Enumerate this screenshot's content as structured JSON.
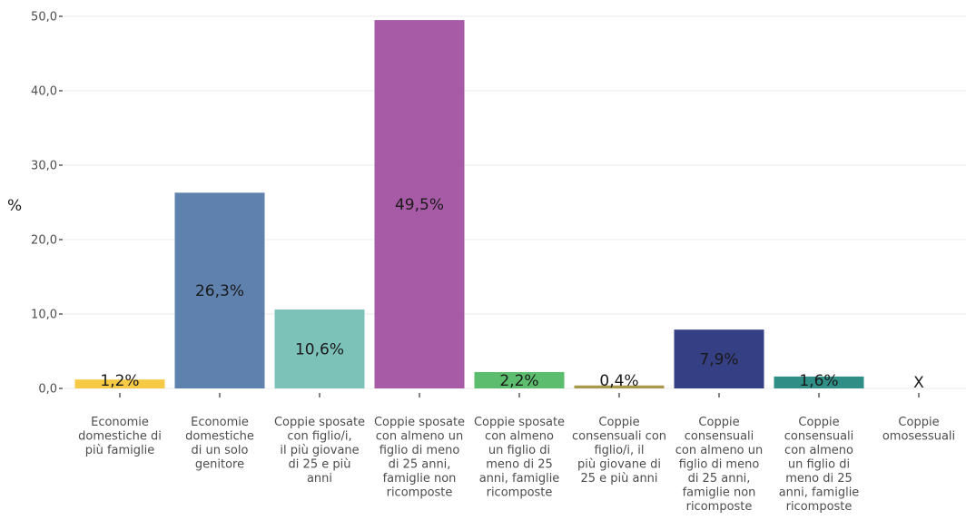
{
  "chart_data": {
    "type": "bar",
    "ylabel": "%",
    "ylim": [
      0,
      50
    ],
    "yticks": [
      "0,0",
      "10,0",
      "20,0",
      "30,0",
      "40,0",
      "50,0"
    ],
    "ytick_values": [
      0,
      10,
      20,
      30,
      40,
      50
    ],
    "grid": true,
    "categories": [
      [
        "Economie",
        "domestiche di",
        "più famiglie"
      ],
      [
        "Economie",
        "domestiche",
        "di un solo",
        "genitore"
      ],
      [
        "Coppie sposate",
        "con figlio/i,",
        "il più giovane",
        "di 25 e più",
        "anni"
      ],
      [
        "Coppie sposate",
        "con almeno un",
        "figlio di meno",
        "di 25 anni,",
        "famiglie non",
        "ricomposte"
      ],
      [
        "Coppie sposate",
        "con almeno",
        "un figlio di",
        "meno di 25",
        "anni, famiglie",
        "ricomposte"
      ],
      [
        "Coppie",
        "consensuali con",
        "figlio/i, il",
        "più giovane di",
        "25 e più anni"
      ],
      [
        "Coppie",
        "consensuali",
        "con almeno un",
        "figlio di meno",
        "di 25 anni,",
        "famiglie non",
        "ricomposte"
      ],
      [
        "Coppie",
        "consensuali",
        "con almeno",
        "un figlio di",
        "meno di 25",
        "anni, famiglie",
        "ricomposte"
      ],
      [
        "Coppie",
        "omosessuali"
      ]
    ],
    "values": [
      1.2,
      26.3,
      10.6,
      49.5,
      2.2,
      0.4,
      7.9,
      1.6,
      null
    ],
    "labels": [
      "1,2%",
      "26,3%",
      "10,6%",
      "49,5%",
      "2,2%",
      "0,4%",
      "7,9%",
      "1,6%",
      "X"
    ],
    "colors": [
      "#f6c945",
      "#5e81ae",
      "#7cc2b9",
      "#a75aa6",
      "#5cbd6e",
      "#a8994c",
      "#343f84",
      "#2f8f87",
      "#ffffff"
    ],
    "label_colors": [
      "#1a1a1a",
      "#1a1a1a",
      "#1a1a1a",
      "#1a1a1a",
      "#1a1a1a",
      "#1a1a1a",
      "#1a1a1a",
      "#1a1a1a",
      "#1a1a1a"
    ]
  }
}
